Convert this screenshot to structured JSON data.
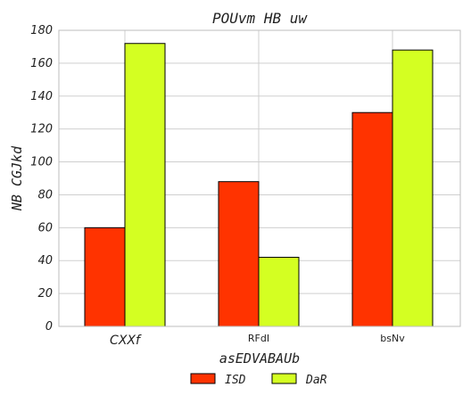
{
  "chart_data": {
    "type": "bar",
    "title": "POUvm HB  uw",
    "xlabel": "asEDVABAUb",
    "ylabel": "NB CGJkd",
    "categories": [
      "CXXf",
      "RFdI",
      "bsNv"
    ],
    "series": [
      {
        "name": "ISD",
        "color": "#ff3300",
        "values": [
          60,
          88,
          130
        ]
      },
      {
        "name": "DaR",
        "color": "#d4ff22",
        "values": [
          172,
          42,
          168
        ]
      }
    ],
    "ylim": [
      0,
      180
    ],
    "yticks": [
      0,
      20,
      40,
      60,
      80,
      100,
      120,
      140,
      160,
      180
    ],
    "grid": true,
    "legend": "bottom-center"
  }
}
